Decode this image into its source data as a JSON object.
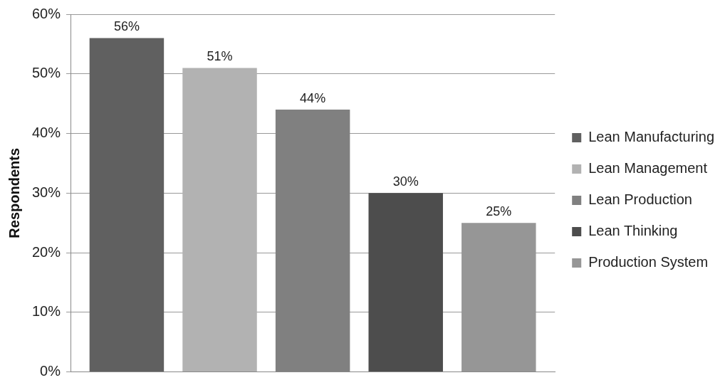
{
  "chart_data": {
    "type": "bar",
    "ylabel": "Respondents",
    "categories": [
      null
    ],
    "series": [
      {
        "name": "Lean Manufacturing",
        "color": "#606060",
        "values": [
          56
        ],
        "value_labels": [
          "56%"
        ]
      },
      {
        "name": "Lean Management",
        "color": "#b2b2b2",
        "values": [
          51
        ],
        "value_labels": [
          "51%"
        ]
      },
      {
        "name": "Lean Production",
        "color": "#808080",
        "values": [
          44
        ],
        "value_labels": [
          "44%"
        ]
      },
      {
        "name": "Lean Thinking",
        "color": "#4d4d4d",
        "values": [
          30
        ],
        "value_labels": [
          "30%"
        ]
      },
      {
        "name": "Production System",
        "color": "#969696",
        "values": [
          25
        ],
        "value_labels": [
          "25%"
        ]
      }
    ],
    "ylim": [
      0,
      60
    ],
    "yticks": [
      {
        "value": 0,
        "label": "0%"
      },
      {
        "value": 10,
        "label": "10%"
      },
      {
        "value": 20,
        "label": "20%"
      },
      {
        "value": 30,
        "label": "30%"
      },
      {
        "value": 40,
        "label": "40%"
      },
      {
        "value": 50,
        "label": "50%"
      },
      {
        "value": 60,
        "label": "60%"
      }
    ],
    "grid": "y",
    "legend": "right"
  }
}
